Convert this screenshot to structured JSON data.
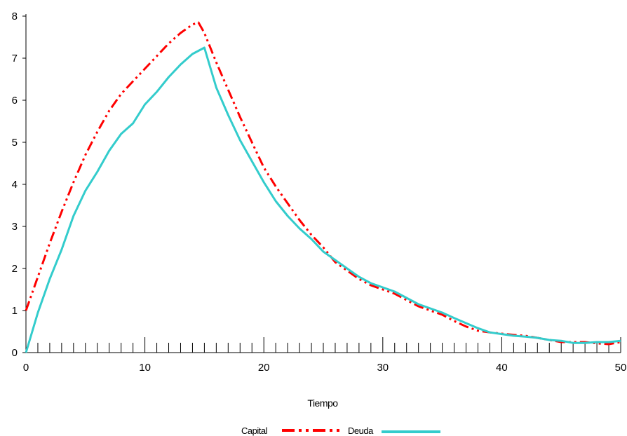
{
  "chart_data": {
    "type": "line",
    "title": "",
    "xlabel": "Tiempo",
    "ylabel": "",
    "xlim": [
      0,
      50
    ],
    "ylim": [
      0,
      8
    ],
    "x_ticks": [
      0,
      10,
      20,
      30,
      40,
      50
    ],
    "y_ticks": [
      0,
      1,
      2,
      3,
      4,
      5,
      6,
      7,
      8
    ],
    "grid": false,
    "legend_position": "bottom",
    "series": [
      {
        "name": "Capital",
        "color": "#ff0000",
        "style": "dash-dot-dot",
        "x": [
          0,
          1,
          2,
          3,
          4,
          5,
          6,
          7,
          8,
          9,
          10,
          11,
          12,
          13,
          14,
          14.5,
          15,
          16,
          17,
          18,
          19,
          20,
          21,
          22,
          23,
          24,
          25,
          26,
          27,
          28,
          29,
          30,
          31,
          32,
          33,
          34,
          35,
          36,
          37,
          38,
          39,
          40,
          41,
          42,
          43,
          44,
          45,
          46,
          47,
          48,
          49,
          50
        ],
        "y": [
          1.0,
          1.8,
          2.6,
          3.35,
          4.05,
          4.7,
          5.25,
          5.75,
          6.15,
          6.45,
          6.75,
          7.05,
          7.35,
          7.6,
          7.8,
          7.85,
          7.6,
          6.9,
          6.25,
          5.6,
          5.0,
          4.4,
          3.95,
          3.55,
          3.15,
          2.8,
          2.5,
          2.15,
          1.95,
          1.75,
          1.6,
          1.5,
          1.4,
          1.25,
          1.1,
          1.0,
          0.9,
          0.75,
          0.62,
          0.52,
          0.48,
          0.45,
          0.42,
          0.4,
          0.35,
          0.3,
          0.25,
          0.25,
          0.25,
          0.22,
          0.2,
          0.25
        ]
      },
      {
        "name": "Deuda",
        "color": "#33cccc",
        "style": "solid",
        "x": [
          0,
          1,
          2,
          3,
          4,
          5,
          6,
          7,
          8,
          9,
          10,
          11,
          12,
          13,
          14,
          15,
          16,
          17,
          18,
          19,
          20,
          21,
          22,
          23,
          24,
          25,
          26,
          27,
          28,
          29,
          30,
          31,
          32,
          33,
          34,
          35,
          36,
          37,
          38,
          39,
          40,
          41,
          42,
          43,
          44,
          45,
          46,
          47,
          48,
          49,
          50
        ],
        "y": [
          0.0,
          0.95,
          1.75,
          2.45,
          3.25,
          3.85,
          4.3,
          4.8,
          5.2,
          5.45,
          5.9,
          6.2,
          6.55,
          6.85,
          7.1,
          7.25,
          6.3,
          5.65,
          5.05,
          4.55,
          4.05,
          3.6,
          3.25,
          2.95,
          2.7,
          2.4,
          2.2,
          2.0,
          1.8,
          1.65,
          1.55,
          1.45,
          1.3,
          1.15,
          1.05,
          0.95,
          0.82,
          0.7,
          0.58,
          0.48,
          0.44,
          0.4,
          0.38,
          0.35,
          0.3,
          0.28,
          0.23,
          0.23,
          0.25,
          0.25,
          0.28
        ]
      }
    ]
  }
}
